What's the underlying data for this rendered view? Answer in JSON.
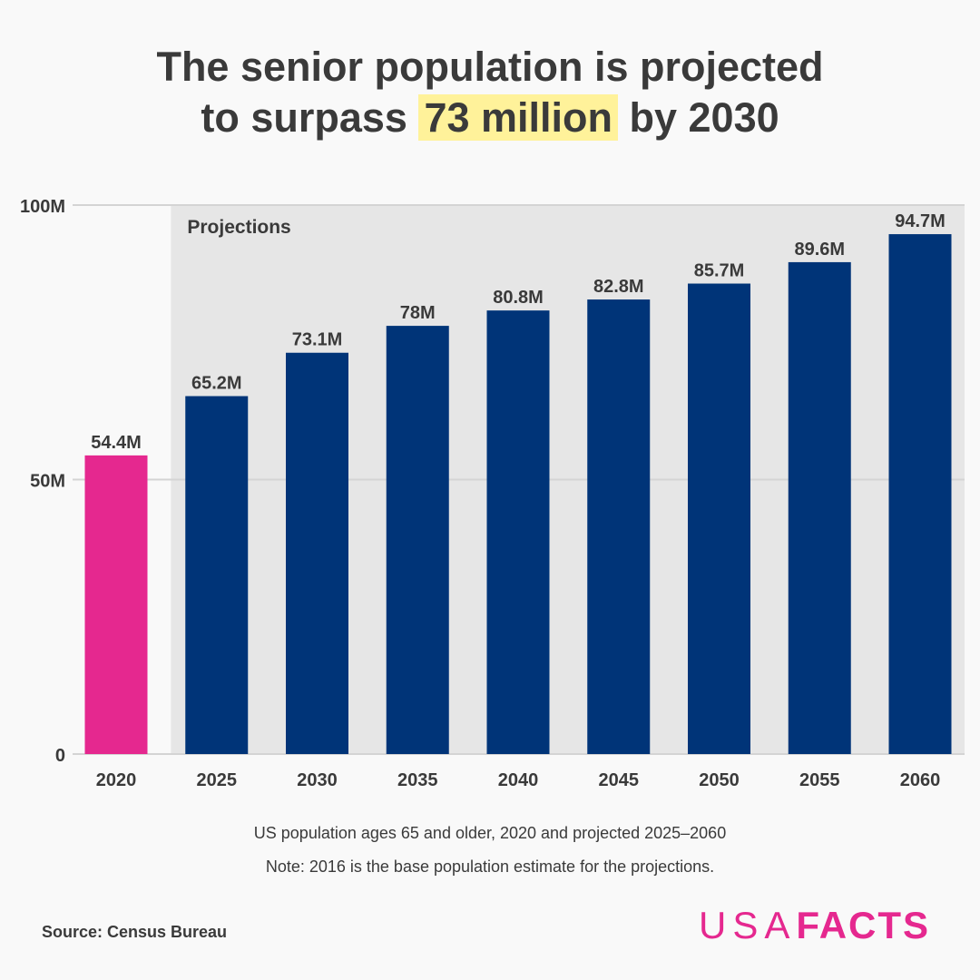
{
  "title": {
    "line1": "The senior population is projected",
    "line2_pre": "to surpass",
    "line2_highlight": "73 million",
    "line2_post": "by 2030"
  },
  "chart_data": {
    "type": "bar",
    "categories": [
      "2020",
      "2025",
      "2030",
      "2035",
      "2040",
      "2045",
      "2050",
      "2055",
      "2060"
    ],
    "values": [
      54.4,
      65.2,
      73.1,
      78,
      80.8,
      82.8,
      85.7,
      89.6,
      94.7
    ],
    "data_labels": [
      "54.4M",
      "65.2M",
      "73.1M",
      "78M",
      "80.8M",
      "82.8M",
      "85.7M",
      "89.6M",
      "94.7M"
    ],
    "unit": "M",
    "ylim": [
      0,
      100
    ],
    "yticks": [
      {
        "value": 0,
        "label": "0"
      },
      {
        "value": 50,
        "label": "50M"
      },
      {
        "value": 100,
        "label": "100M"
      }
    ],
    "grid": true,
    "projection_region": {
      "label": "Projections",
      "from": "2025",
      "to": "2060"
    },
    "colors": {
      "actual": "#e5288f",
      "projected": "#003478",
      "projection_bg": "#e6e6e6",
      "grid": "#d4d4d4",
      "highlight": "#fff29a"
    }
  },
  "caption": "US population ages 65 and older, 2020 and projected 2025–2060",
  "note": "Note: 2016 is the base population estimate for the projections.",
  "source": "Source: Census Bureau",
  "logo": {
    "text": "USAFACTS",
    "part1": "USA",
    "part2": "FACTS",
    "color": "#e5288f"
  }
}
